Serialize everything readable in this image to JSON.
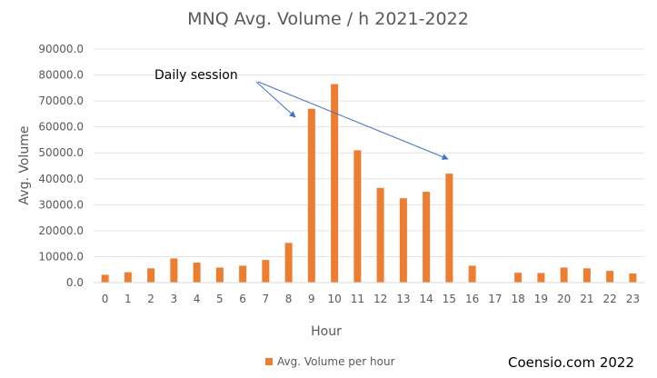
{
  "chart_data": {
    "type": "bar",
    "title": "MNQ Avg. Volume / h 2021-2022",
    "xlabel": "Hour",
    "ylabel": "Avg. Volume",
    "categories": [
      "0",
      "1",
      "2",
      "3",
      "4",
      "5",
      "6",
      "7",
      "8",
      "9",
      "10",
      "11",
      "12",
      "13",
      "14",
      "15",
      "16",
      "17",
      "18",
      "19",
      "20",
      "21",
      "22",
      "23"
    ],
    "series": [
      {
        "name": "Avg. Volume per hour",
        "color": "#ED7D31",
        "values": [
          3000,
          4000,
          5500,
          9300,
          7700,
          5800,
          6500,
          8700,
          15300,
          67000,
          76500,
          51000,
          36500,
          32500,
          35000,
          42000,
          6500,
          0,
          3800,
          3700,
          5800,
          5500,
          4500,
          3500
        ]
      }
    ],
    "ylim": [
      0,
      90000
    ],
    "yticks": [
      0,
      10000,
      20000,
      30000,
      40000,
      50000,
      60000,
      70000,
      80000,
      90000
    ],
    "ytick_labels": [
      "0.0",
      "10000.0",
      "20000.0",
      "30000.0",
      "40000.0",
      "50000.0",
      "60000.0",
      "70000.0",
      "80000.0",
      "90000.0"
    ],
    "grid": true,
    "legend_position": "bottom",
    "annotation": {
      "text": "Daily session",
      "arrow_color": "#4472C4",
      "points_to": [
        "9",
        "15"
      ]
    },
    "credit": "Coensio.com 2022"
  }
}
